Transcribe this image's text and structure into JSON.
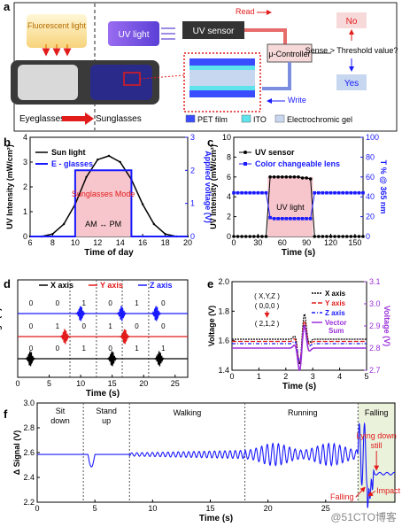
{
  "panel_a": {
    "letter": "a",
    "fluorescent_light": "Fluorescent light",
    "uv_light": "UV light",
    "uv_sensor": "UV sensor",
    "read": "Read",
    "write": "Write",
    "controller": "μ-Controller",
    "no": "No",
    "yes": "Yes",
    "question": "Sense > Threshold value?",
    "eyeglasses": "Eyeglasses",
    "sunglasses": "Sunglasses",
    "legend": [
      {
        "label": "PET film",
        "color": "#3a4cff"
      },
      {
        "label": "ITO",
        "color": "#5ee2ec"
      },
      {
        "label": "Electrochromic gel",
        "color": "#c7d7f0"
      }
    ]
  },
  "panel_b": {
    "letter": "b",
    "mode_text": "Sunglasses Mode",
    "ampm": "AM ↔ PM"
  },
  "panel_c": {
    "letter": "c",
    "box_text": "UV light"
  },
  "panel_d": {
    "letter": "d"
  },
  "panel_e": {
    "letter": "e",
    "annot_top": "( X,Y,Z )",
    "annot_mid": "( 0,0,0 )",
    "annot_bot": "( 2,1,2 )"
  },
  "panel_f": {
    "letter": "f",
    "segments": [
      "Sit down",
      "Stand up",
      "Walking",
      "Running",
      "Falling"
    ],
    "lying": "Lying down still",
    "impact": "Impact",
    "falling_lbl": "Falling"
  },
  "watermark": "@51CTO博客",
  "chart_data": [
    {
      "id": "b",
      "type": "line",
      "xlabel": "Time of day",
      "ylabel": "UV Intensity (mW/cm²)",
      "y2label": "Applied voltage (V)",
      "xlim": [
        6,
        20
      ],
      "ylim": [
        0,
        4
      ],
      "y2lim": [
        0,
        3
      ],
      "xticks": [
        6,
        8,
        10,
        12,
        14,
        16,
        18,
        20
      ],
      "yticks": [
        0,
        1,
        2,
        3,
        4
      ],
      "y2ticks": [
        0,
        1,
        2,
        3
      ],
      "series": [
        {
          "name": "Sun light",
          "color": "#000000",
          "x": [
            6,
            7,
            8,
            9,
            10,
            11,
            12,
            13,
            14,
            15,
            16,
            17,
            18,
            19,
            20
          ],
          "y": [
            0,
            0,
            0.1,
            0.5,
            1.3,
            2.4,
            3.1,
            3.25,
            3.0,
            2.3,
            1.3,
            0.5,
            0.1,
            0,
            0
          ]
        },
        {
          "name": "E - glasses",
          "color": "#1a1aff",
          "axis": "right",
          "x": [
            6,
            10,
            10,
            15,
            15,
            20
          ],
          "y": [
            0,
            0,
            2,
            2,
            0,
            0
          ]
        }
      ]
    },
    {
      "id": "c",
      "type": "line",
      "xlabel": "Time (s)",
      "ylabel": "UV Intensity (mW/cm²)",
      "y2label": "T % @ 365 nm",
      "xlim": [
        0,
        160
      ],
      "ylim": [
        0,
        10
      ],
      "y2lim": [
        0,
        100
      ],
      "xticks": [
        0,
        30,
        60,
        90,
        120,
        150
      ],
      "yticks": [
        0,
        2,
        4,
        6,
        8,
        10
      ],
      "y2ticks": [
        0,
        20,
        40,
        60,
        80,
        100
      ],
      "series": [
        {
          "name": "UV sensor",
          "color": "#000000",
          "x": [
            0,
            5,
            10,
            15,
            20,
            25,
            30,
            35,
            40,
            45,
            50,
            55,
            60,
            65,
            70,
            75,
            80,
            85,
            90,
            95,
            100,
            105,
            110,
            115,
            120,
            125,
            130,
            135,
            140,
            145,
            150,
            155,
            160
          ],
          "y": [
            0,
            0,
            0,
            0,
            0,
            0,
            0,
            0,
            0,
            6.0,
            6.0,
            6.0,
            6.0,
            6.0,
            6.0,
            6.0,
            6.0,
            5.9,
            5.9,
            5.8,
            0,
            0,
            0,
            0,
            0,
            0,
            0,
            0,
            0,
            0,
            0,
            0,
            0
          ]
        },
        {
          "name": "Color changeable lens",
          "color": "#1a1aff",
          "axis": "right",
          "x": [
            0,
            5,
            10,
            15,
            20,
            25,
            30,
            35,
            40,
            45,
            50,
            55,
            60,
            65,
            70,
            75,
            80,
            85,
            90,
            95,
            100,
            105,
            110,
            115,
            120,
            125,
            130,
            135,
            140,
            145,
            150,
            155,
            160
          ],
          "y": [
            44,
            44,
            44,
            44,
            44,
            44,
            44,
            44,
            44,
            19,
            18,
            18,
            18,
            18,
            18,
            18,
            18,
            18,
            18,
            18,
            44,
            44,
            44,
            44,
            44,
            44,
            44,
            44,
            44,
            44,
            44,
            44,
            44
          ]
        }
      ]
    },
    {
      "id": "d",
      "type": "line",
      "xlabel": "Time (s)",
      "ylabel": "Voltage (V)",
      "xlim": [
        0,
        27
      ],
      "xticks": [
        0,
        5,
        10,
        15,
        20,
        25
      ],
      "series": [
        {
          "name": "X axis",
          "color": "#000000",
          "digits": [
            "0",
            "0",
            "1",
            "0",
            "1",
            "1"
          ],
          "events": [
            2,
            15,
            22.5
          ]
        },
        {
          "name": "Y axis",
          "color": "#e21b1b",
          "digits": [
            "0",
            "1",
            "0",
            "1",
            "0",
            "0"
          ],
          "events": [
            7.5,
            17
          ]
        },
        {
          "name": "Z axis",
          "color": "#1a1aff",
          "digits": [
            "0",
            "0",
            "1",
            "0",
            "1",
            "0"
          ],
          "events": [
            10,
            16.5,
            22
          ]
        }
      ]
    },
    {
      "id": "e",
      "type": "line",
      "xlabel": "Time (s)",
      "ylabel": "Voltage (V)",
      "y2label": "Voltage (V)",
      "xlim": [
        0,
        5
      ],
      "ylim": [
        1.4,
        2.0
      ],
      "y2lim": [
        2.7,
        3.1
      ],
      "xticks": [
        0,
        1,
        2,
        3,
        4,
        5
      ],
      "yticks": [
        1.4,
        1.6,
        1.8,
        2.0
      ],
      "y2ticks": [
        2.7,
        2.8,
        2.9,
        3.0,
        3.1
      ],
      "series": [
        {
          "name": "X axis",
          "color": "#000000"
        },
        {
          "name": "Y axis",
          "color": "#e21b1b"
        },
        {
          "name": "Z axis",
          "color": "#1a1aff"
        },
        {
          "name": "Vector Sum",
          "color": "#9b30d9",
          "axis": "right"
        }
      ]
    },
    {
      "id": "f",
      "type": "line",
      "xlabel": "Time (s)",
      "ylabel": "Δ Signal (V)",
      "xlim": [
        0,
        31
      ],
      "ylim": [
        2.2,
        3.0
      ],
      "xticks": [
        0,
        5,
        10,
        15,
        20,
        25
      ],
      "yticks": [
        2.2,
        2.4,
        2.6,
        2.8,
        3.0
      ],
      "series": [
        {
          "name": "",
          "color": "#1a1aff"
        }
      ]
    }
  ]
}
